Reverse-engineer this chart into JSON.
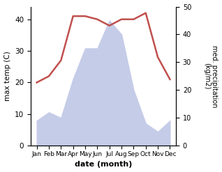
{
  "months": [
    "Jan",
    "Feb",
    "Mar",
    "Apr",
    "May",
    "Jun",
    "Jul",
    "Aug",
    "Sep",
    "Oct",
    "Nov",
    "Dec"
  ],
  "x": [
    1,
    2,
    3,
    4,
    5,
    6,
    7,
    8,
    9,
    10,
    11,
    12
  ],
  "temperature": [
    20,
    22,
    27,
    41,
    41,
    40,
    38,
    40,
    40,
    42,
    28,
    21
  ],
  "precipitation": [
    9,
    12,
    10,
    24,
    35,
    35,
    45,
    40,
    20,
    8,
    5,
    9
  ],
  "temp_color": "#c0504d",
  "precip_fill_color": "#c5cce8",
  "ylabel_left": "max temp (C)",
  "ylabel_right": "med. precipitation\n(kg/m2)",
  "xlabel": "date (month)",
  "ylim_left": [
    0,
    44
  ],
  "ylim_right": [
    0,
    50
  ],
  "yticks_left": [
    0,
    10,
    20,
    30,
    40
  ],
  "yticks_right": [
    0,
    10,
    20,
    30,
    40,
    50
  ],
  "bg_color": "#ffffff"
}
